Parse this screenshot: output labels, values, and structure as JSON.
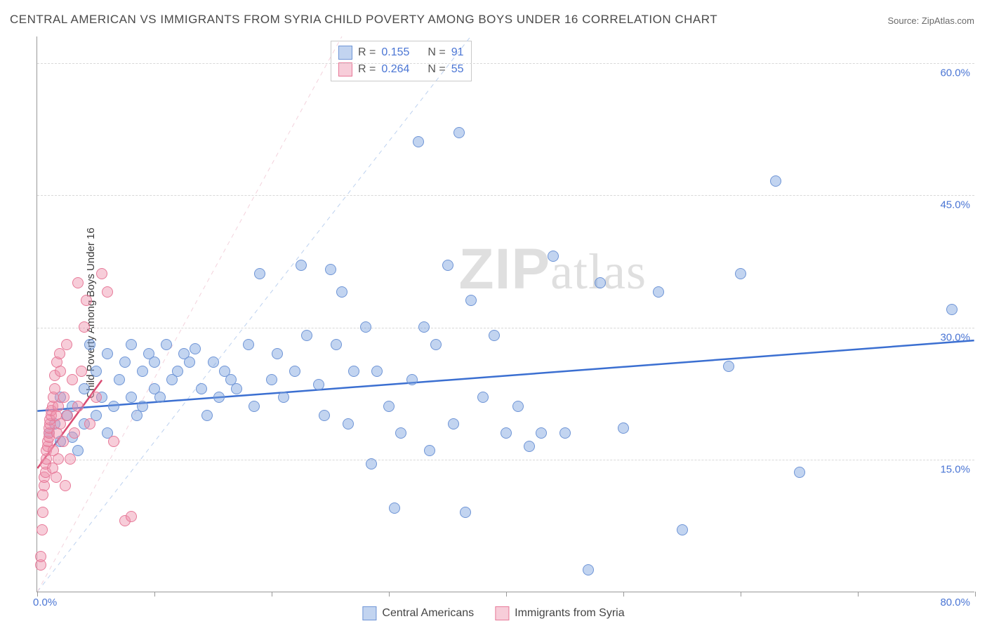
{
  "title": "CENTRAL AMERICAN VS IMMIGRANTS FROM SYRIA CHILD POVERTY AMONG BOYS UNDER 16 CORRELATION CHART",
  "source_label": "Source: ",
  "source_site": "ZipAtlas.com",
  "ylabel": "Child Poverty Among Boys Under 16",
  "watermark_a": "ZIP",
  "watermark_b": "atlas",
  "chart": {
    "type": "scatter",
    "xlim": [
      0,
      80
    ],
    "ylim": [
      0,
      63
    ],
    "x_min_label": "0.0%",
    "x_max_label": "80.0%",
    "y_ticks": [
      15,
      30,
      45,
      60
    ],
    "y_tick_labels": [
      "15.0%",
      "30.0%",
      "45.0%",
      "60.0%"
    ],
    "x_tick_positions": [
      0,
      10,
      20,
      30,
      40,
      50,
      60,
      70,
      80
    ],
    "grid_color": "#d8d8d8",
    "background_color": "#ffffff",
    "marker_radius": 8,
    "series": [
      {
        "name": "Central Americans",
        "fill": "rgba(120,160,222,0.45)",
        "stroke": "#6f95d6",
        "r_value": "0.155",
        "n_value": "91",
        "trend": {
          "x1": 0,
          "y1": 20.5,
          "x2": 80,
          "y2": 28.5,
          "color": "#3b6fd1",
          "width": 2.5,
          "dash": "none"
        },
        "diag": {
          "x1": 0,
          "y1": 0,
          "x2": 37,
          "y2": 63,
          "color": "#bcd1ef",
          "width": 1,
          "dash": "6,6"
        },
        "points": [
          [
            1,
            18
          ],
          [
            1.5,
            19
          ],
          [
            2,
            17
          ],
          [
            2,
            22
          ],
          [
            2.5,
            20
          ],
          [
            3,
            21
          ],
          [
            3,
            17.5
          ],
          [
            3.5,
            16
          ],
          [
            4,
            19
          ],
          [
            4,
            23
          ],
          [
            4.5,
            28
          ],
          [
            5,
            20
          ],
          [
            5,
            25
          ],
          [
            5.5,
            22
          ],
          [
            6,
            18
          ],
          [
            6,
            27
          ],
          [
            6.5,
            21
          ],
          [
            7,
            24
          ],
          [
            7.5,
            26
          ],
          [
            8,
            22
          ],
          [
            8,
            28
          ],
          [
            8.5,
            20
          ],
          [
            9,
            21
          ],
          [
            9,
            25
          ],
          [
            9.5,
            27
          ],
          [
            10,
            26
          ],
          [
            10,
            23
          ],
          [
            10.5,
            22
          ],
          [
            11,
            28
          ],
          [
            11.5,
            24
          ],
          [
            12,
            25
          ],
          [
            12.5,
            27
          ],
          [
            13,
            26
          ],
          [
            13.5,
            27.5
          ],
          [
            14,
            23
          ],
          [
            14.5,
            20
          ],
          [
            15,
            26
          ],
          [
            15.5,
            22
          ],
          [
            16,
            25
          ],
          [
            16.5,
            24
          ],
          [
            17,
            23
          ],
          [
            18,
            28
          ],
          [
            18.5,
            21
          ],
          [
            19,
            36
          ],
          [
            20,
            24
          ],
          [
            20.5,
            27
          ],
          [
            21,
            22
          ],
          [
            22,
            25
          ],
          [
            22.5,
            37
          ],
          [
            23,
            29
          ],
          [
            24,
            23.5
          ],
          [
            24.5,
            20
          ],
          [
            25,
            36.5
          ],
          [
            25.5,
            28
          ],
          [
            26,
            34
          ],
          [
            26.5,
            19
          ],
          [
            27,
            25
          ],
          [
            28,
            30
          ],
          [
            28.5,
            14.5
          ],
          [
            29,
            25
          ],
          [
            30,
            21
          ],
          [
            30.5,
            9.5
          ],
          [
            31,
            18
          ],
          [
            32,
            24
          ],
          [
            32.5,
            51
          ],
          [
            33,
            30
          ],
          [
            33.5,
            16
          ],
          [
            34,
            28
          ],
          [
            35,
            37
          ],
          [
            35.5,
            19
          ],
          [
            36,
            52
          ],
          [
            36.5,
            9
          ],
          [
            37,
            33
          ],
          [
            38,
            22
          ],
          [
            39,
            29
          ],
          [
            40,
            18
          ],
          [
            41,
            21
          ],
          [
            42,
            16.5
          ],
          [
            43,
            18
          ],
          [
            44,
            38
          ],
          [
            45,
            18
          ],
          [
            47,
            2.5
          ],
          [
            48,
            35
          ],
          [
            50,
            18.5
          ],
          [
            53,
            34
          ],
          [
            55,
            7
          ],
          [
            59,
            25.5
          ],
          [
            60,
            36
          ],
          [
            63,
            46.5
          ],
          [
            65,
            13.5
          ],
          [
            78,
            32
          ]
        ]
      },
      {
        "name": "Immigrants from Syria",
        "fill": "rgba(238,145,170,0.45)",
        "stroke": "#e77a99",
        "r_value": "0.264",
        "n_value": "55",
        "trend": {
          "x1": 0,
          "y1": 14,
          "x2": 5.5,
          "y2": 24,
          "color": "#d94b72",
          "width": 2.5,
          "dash": "none"
        },
        "diag": {
          "x1": 0,
          "y1": 0,
          "x2": 26,
          "y2": 63,
          "color": "#f3d2dc",
          "width": 1,
          "dash": "6,6"
        },
        "points": [
          [
            0.3,
            3
          ],
          [
            0.3,
            4
          ],
          [
            0.4,
            7
          ],
          [
            0.5,
            9
          ],
          [
            0.5,
            11
          ],
          [
            0.6,
            12
          ],
          [
            0.6,
            13
          ],
          [
            0.7,
            13.5
          ],
          [
            0.7,
            14.5
          ],
          [
            0.8,
            15
          ],
          [
            0.8,
            16
          ],
          [
            0.9,
            16.5
          ],
          [
            0.9,
            17
          ],
          [
            1,
            17.5
          ],
          [
            1,
            18
          ],
          [
            1,
            18.5
          ],
          [
            1.1,
            19
          ],
          [
            1.1,
            19.5
          ],
          [
            1.2,
            20
          ],
          [
            1.2,
            20.5
          ],
          [
            1.3,
            21
          ],
          [
            1.3,
            14
          ],
          [
            1.4,
            16
          ],
          [
            1.4,
            22
          ],
          [
            1.5,
            23
          ],
          [
            1.5,
            24.5
          ],
          [
            1.6,
            13
          ],
          [
            1.6,
            20
          ],
          [
            1.7,
            18
          ],
          [
            1.7,
            26
          ],
          [
            1.8,
            15
          ],
          [
            1.8,
            21
          ],
          [
            1.9,
            27
          ],
          [
            2,
            19
          ],
          [
            2,
            25
          ],
          [
            2.2,
            17
          ],
          [
            2.3,
            22
          ],
          [
            2.4,
            12
          ],
          [
            2.5,
            28
          ],
          [
            2.6,
            20
          ],
          [
            2.8,
            15
          ],
          [
            3,
            24
          ],
          [
            3.2,
            18
          ],
          [
            3.5,
            21
          ],
          [
            3.5,
            35
          ],
          [
            3.8,
            25
          ],
          [
            4,
            30
          ],
          [
            4.2,
            33
          ],
          [
            4.5,
            19
          ],
          [
            5,
            22
          ],
          [
            5.5,
            36
          ],
          [
            6,
            34
          ],
          [
            6.5,
            17
          ],
          [
            7.5,
            8
          ],
          [
            8,
            8.5
          ]
        ]
      }
    ]
  },
  "stats_labels": {
    "R": "R  =",
    "N": "N  ="
  },
  "legend": {
    "series1_label": "Central Americans",
    "series2_label": "Immigrants from Syria"
  }
}
